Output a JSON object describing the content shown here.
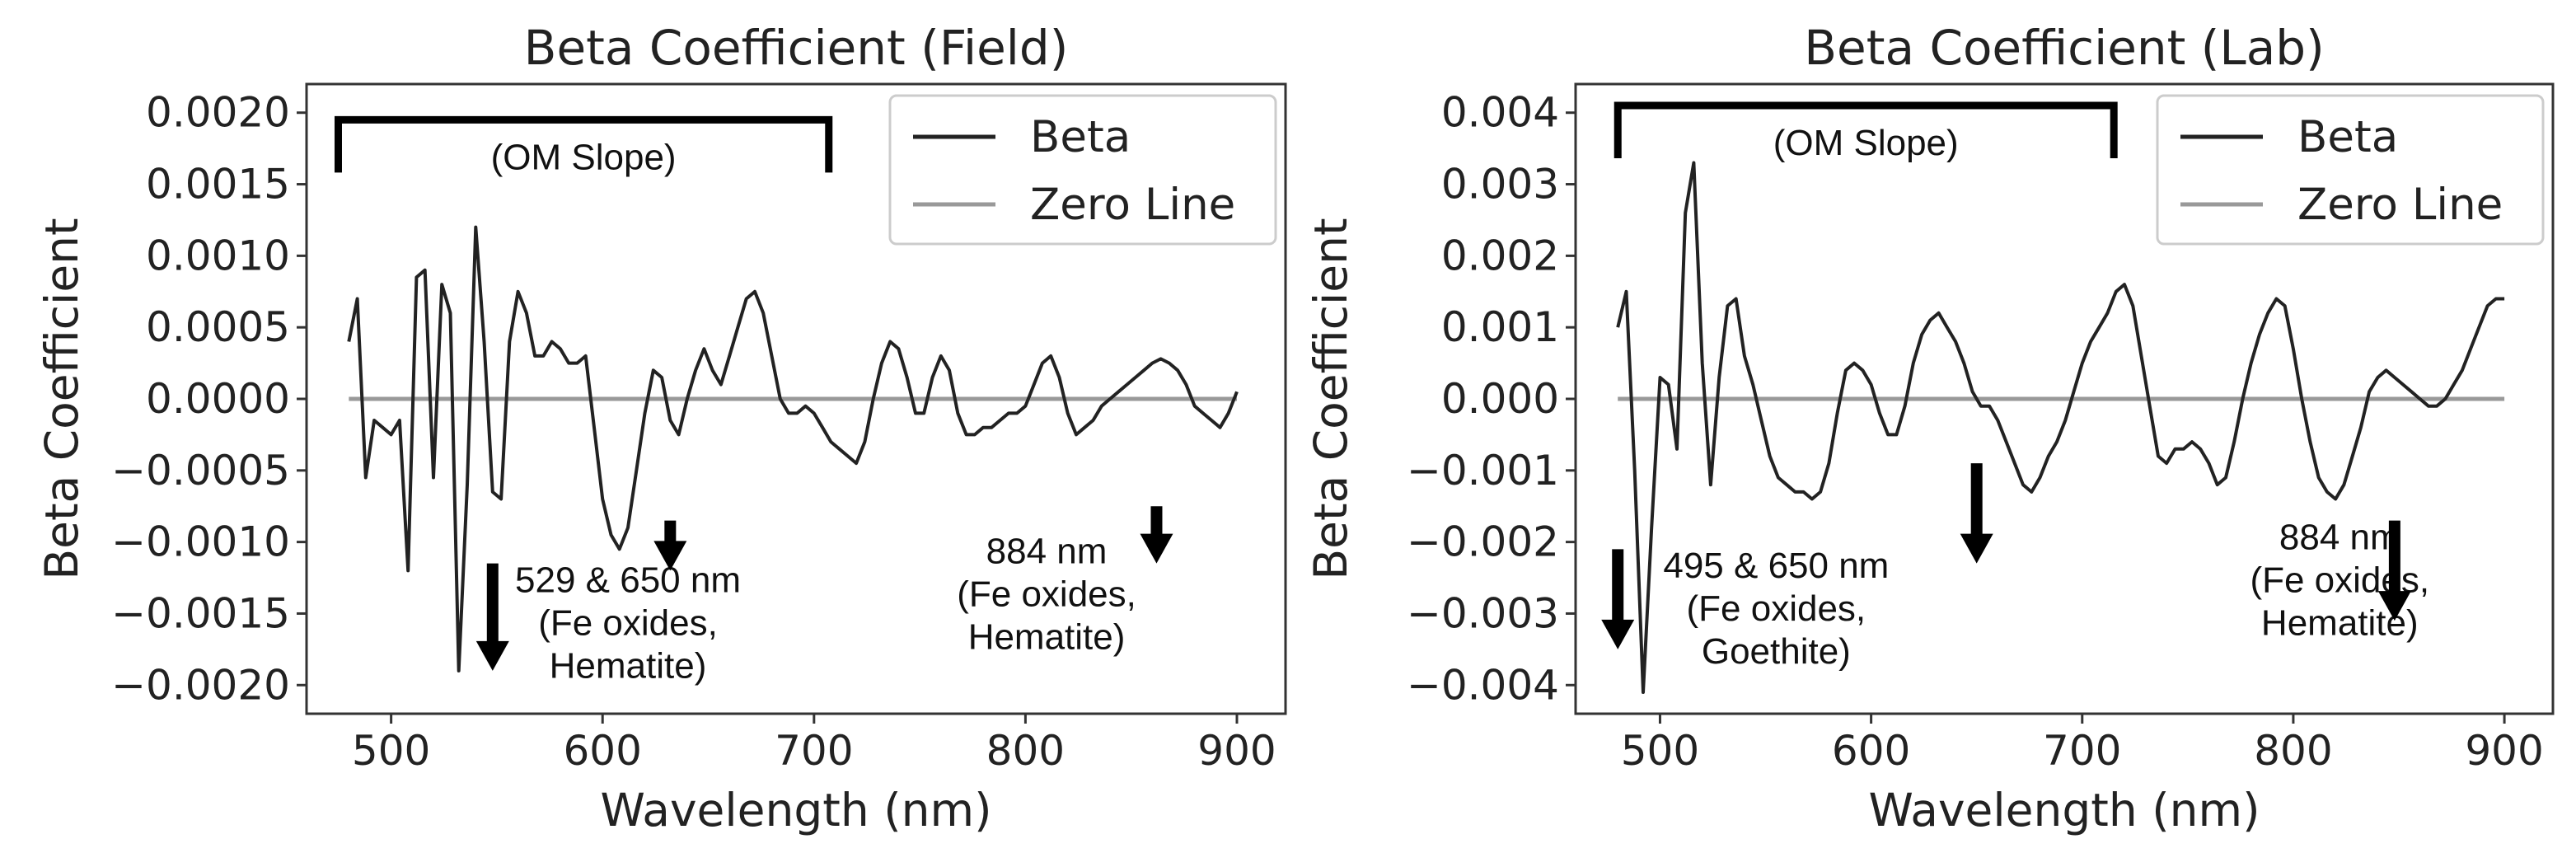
{
  "chart_data": [
    {
      "type": "line",
      "title": "Beta Coefficient (Field)",
      "xlabel": "Wavelength (nm)",
      "ylabel": "Beta Coefficient",
      "xlim": [
        460,
        923
      ],
      "ylim": [
        -0.0022,
        0.0022
      ],
      "xticks": [
        500,
        600,
        700,
        800,
        900
      ],
      "xtick_labels": [
        "500",
        "600",
        "700",
        "800",
        "900"
      ],
      "yticks": [
        0.002,
        0.0015,
        0.001,
        0.0005,
        0.0,
        -0.0005,
        -0.001,
        -0.0015,
        -0.002
      ],
      "ytick_labels": [
        "0.0020",
        "0.0015",
        "0.0010",
        "0.0005",
        "0.0000",
        "−0.0005",
        "−0.0010",
        "−0.0015",
        "−0.0020"
      ],
      "legend_position": "top-right",
      "series": [
        {
          "name": "Beta",
          "color": "#222222",
          "x": [
            480,
            484,
            488,
            492,
            496,
            500,
            504,
            508,
            512,
            516,
            520,
            524,
            528,
            532,
            536,
            540,
            544,
            548,
            552,
            556,
            560,
            564,
            568,
            572,
            576,
            580,
            584,
            588,
            592,
            596,
            600,
            604,
            608,
            612,
            616,
            620,
            624,
            628,
            632,
            636,
            640,
            644,
            648,
            652,
            656,
            660,
            664,
            668,
            672,
            676,
            680,
            684,
            688,
            692,
            696,
            700,
            704,
            708,
            712,
            716,
            720,
            724,
            728,
            732,
            736,
            740,
            744,
            748,
            752,
            756,
            760,
            764,
            768,
            772,
            776,
            780,
            784,
            788,
            792,
            796,
            800,
            804,
            808,
            812,
            816,
            820,
            824,
            828,
            832,
            836,
            840,
            844,
            848,
            852,
            856,
            860,
            864,
            868,
            872,
            876,
            880,
            884,
            888,
            892,
            896,
            900
          ],
          "y": [
            0.0004,
            0.0007,
            -0.00055,
            -0.00015,
            -0.0002,
            -0.00025,
            -0.00015,
            -0.0012,
            0.00085,
            0.0009,
            -0.00055,
            0.0008,
            0.0006,
            -0.0019,
            -0.0006,
            0.0012,
            0.0004,
            -0.00065,
            -0.0007,
            0.0004,
            0.00075,
            0.0006,
            0.0003,
            0.0003,
            0.0004,
            0.00035,
            0.00025,
            0.00025,
            0.0003,
            -0.0002,
            -0.0007,
            -0.00095,
            -0.00105,
            -0.0009,
            -0.0005,
            -0.0001,
            0.0002,
            0.00015,
            -0.00015,
            -0.00025,
            0.0,
            0.0002,
            0.00035,
            0.0002,
            0.0001,
            0.0003,
            0.0005,
            0.0007,
            0.00075,
            0.0006,
            0.0003,
            0.0,
            -0.0001,
            -0.0001,
            -5e-05,
            -0.0001,
            -0.0002,
            -0.0003,
            -0.00035,
            -0.0004,
            -0.00045,
            -0.0003,
            0.0,
            0.00025,
            0.0004,
            0.00035,
            0.00015,
            -0.0001,
            -0.0001,
            0.00015,
            0.0003,
            0.0002,
            -0.0001,
            -0.00025,
            -0.00025,
            -0.0002,
            -0.0002,
            -0.00015,
            -0.0001,
            -0.0001,
            -5e-05,
            0.0001,
            0.00025,
            0.0003,
            0.00015,
            -0.0001,
            -0.00025,
            -0.0002,
            -0.00015,
            -5e-05,
            0.0,
            5e-05,
            0.0001,
            0.00015,
            0.0002,
            0.00025,
            0.00028,
            0.00025,
            0.0002,
            0.0001,
            -5e-05,
            -0.0001,
            -0.00015,
            -0.0002,
            -0.0001,
            5e-05
          ]
        },
        {
          "name": "Zero Line",
          "color": "#999999",
          "x": [
            480,
            900
          ],
          "y": [
            0,
            0
          ]
        }
      ],
      "bracket": {
        "x_start": 475,
        "x_end": 707,
        "y": 0.00195,
        "label": "(OM Slope)"
      },
      "annotations": [
        {
          "lines": [
            "529 & 650 nm",
            "(Fe oxides,",
            "Hematite)"
          ],
          "x": 612,
          "y": -0.00135
        },
        {
          "lines": [
            "884 nm",
            "(Fe oxides,",
            "Hematite)"
          ],
          "x": 810,
          "y": -0.00115
        }
      ],
      "arrows": [
        {
          "x": 548,
          "y_top": -0.00115,
          "y_bottom": -0.0019
        },
        {
          "x": 632,
          "y_top": -0.00085,
          "y_bottom": -0.0012
        },
        {
          "x": 862,
          "y_top": -0.00075,
          "y_bottom": -0.00115
        }
      ]
    },
    {
      "type": "line",
      "title": "Beta Coefficient (Lab)",
      "xlabel": "Wavelength (nm)",
      "ylabel": "Beta Coefficient",
      "xlim": [
        460,
        923
      ],
      "ylim": [
        -0.0044,
        0.0044
      ],
      "xticks": [
        500,
        600,
        700,
        800,
        900
      ],
      "xtick_labels": [
        "500",
        "600",
        "700",
        "800",
        "900"
      ],
      "yticks": [
        0.004,
        0.003,
        0.002,
        0.001,
        0.0,
        -0.001,
        -0.002,
        -0.003,
        -0.004
      ],
      "ytick_labels": [
        "0.004",
        "0.003",
        "0.002",
        "0.001",
        "0.000",
        "−0.001",
        "−0.002",
        "−0.003",
        "−0.004"
      ],
      "legend_position": "top-right",
      "series": [
        {
          "name": "Beta",
          "color": "#222222",
          "x": [
            480,
            484,
            488,
            492,
            496,
            500,
            504,
            508,
            512,
            516,
            520,
            524,
            528,
            532,
            536,
            540,
            544,
            548,
            552,
            556,
            560,
            564,
            568,
            572,
            576,
            580,
            584,
            588,
            592,
            596,
            600,
            604,
            608,
            612,
            616,
            620,
            624,
            628,
            632,
            636,
            640,
            644,
            648,
            652,
            656,
            660,
            664,
            668,
            672,
            676,
            680,
            684,
            688,
            692,
            696,
            700,
            704,
            708,
            712,
            716,
            720,
            724,
            728,
            732,
            736,
            740,
            744,
            748,
            752,
            756,
            760,
            764,
            768,
            772,
            776,
            780,
            784,
            788,
            792,
            796,
            800,
            804,
            808,
            812,
            816,
            820,
            824,
            828,
            832,
            836,
            840,
            844,
            848,
            852,
            856,
            860,
            864,
            868,
            872,
            876,
            880,
            884,
            888,
            892,
            896,
            900
          ],
          "y": [
            0.001,
            0.0015,
            -0.001,
            -0.0041,
            -0.0018,
            0.0003,
            0.0002,
            -0.0007,
            0.0026,
            0.0033,
            0.0005,
            -0.0012,
            0.0003,
            0.0013,
            0.0014,
            0.0006,
            0.0002,
            -0.0003,
            -0.0008,
            -0.0011,
            -0.0012,
            -0.0013,
            -0.0013,
            -0.0014,
            -0.0013,
            -0.0009,
            -0.0002,
            0.0004,
            0.0005,
            0.0004,
            0.0002,
            -0.0002,
            -0.0005,
            -0.0005,
            -0.0001,
            0.0005,
            0.0009,
            0.0011,
            0.0012,
            0.001,
            0.0008,
            0.0005,
            0.0001,
            -0.0001,
            -0.0001,
            -0.0003,
            -0.0006,
            -0.0009,
            -0.0012,
            -0.0013,
            -0.0011,
            -0.0008,
            -0.0006,
            -0.0003,
            0.0001,
            0.0005,
            0.0008,
            0.001,
            0.0012,
            0.0015,
            0.0016,
            0.0013,
            0.0006,
            -0.0001,
            -0.0008,
            -0.0009,
            -0.0007,
            -0.0007,
            -0.0006,
            -0.0007,
            -0.0009,
            -0.0012,
            -0.0011,
            -0.0006,
            0.0,
            0.0005,
            0.0009,
            0.0012,
            0.0014,
            0.0013,
            0.0007,
            0.0,
            -0.0006,
            -0.0011,
            -0.0013,
            -0.0014,
            -0.0012,
            -0.0008,
            -0.0004,
            0.0001,
            0.0003,
            0.0004,
            0.0003,
            0.0002,
            0.0001,
            0.0,
            -0.0001,
            -0.0001,
            0.0,
            0.0002,
            0.0004,
            0.0007,
            0.001,
            0.0013,
            0.0014,
            0.0014
          ]
        },
        {
          "name": "Zero Line",
          "color": "#999999",
          "x": [
            480,
            900
          ],
          "y": [
            0,
            0
          ]
        }
      ],
      "bracket": {
        "x_start": 480,
        "x_end": 715,
        "y": 0.0041,
        "label": "(OM Slope)"
      },
      "annotations": [
        {
          "lines": [
            "495 & 650 nm",
            "(Fe oxides,",
            "Goethite)"
          ],
          "x": 555,
          "y": -0.0025
        },
        {
          "lines": [
            "884 nm",
            "(Fe oxides,",
            "Hematite)"
          ],
          "x": 822,
          "y": -0.0021
        }
      ],
      "arrows": [
        {
          "x": 480,
          "y_top": -0.0021,
          "y_bottom": -0.0035
        },
        {
          "x": 650,
          "y_top": -0.0009,
          "y_bottom": -0.0023
        },
        {
          "x": 848,
          "y_top": -0.0017,
          "y_bottom": -0.0031
        }
      ]
    }
  ]
}
